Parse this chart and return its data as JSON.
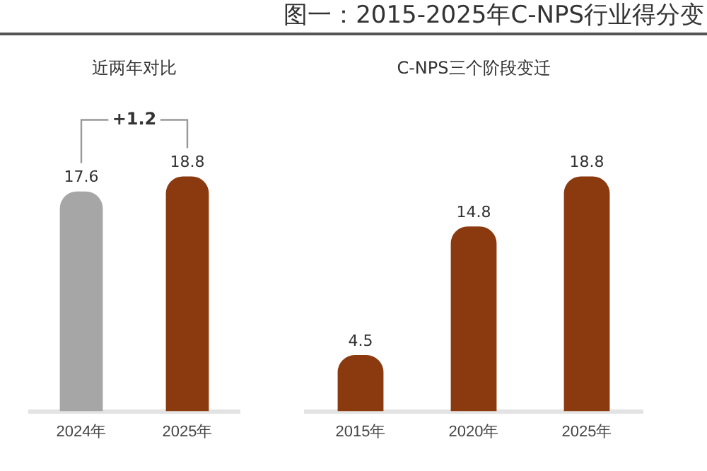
{
  "chart_data": [
    {
      "type": "bar",
      "subtitle": "近两年对比",
      "categories": [
        "2024年",
        "2025年"
      ],
      "values": [
        17.6,
        18.8
      ],
      "colors": [
        "#a6a6a6",
        "#8b3a0f"
      ],
      "tick_labels": "x",
      "grid": false,
      "legend": false,
      "data_labels": true,
      "annotations": [
        "+1.2"
      ]
    },
    {
      "type": "bar",
      "title": "图一：2015-2025年C-NPS行业得分变",
      "subtitle": "C-NPS三个阶段变迁",
      "categories": [
        "2015年",
        "2020年",
        "2025年"
      ],
      "values": [
        4.5,
        14.8,
        18.8
      ],
      "color": "#8b3a0f",
      "tick_labels": "x",
      "grid": false,
      "legend": false,
      "data_labels": true
    }
  ]
}
